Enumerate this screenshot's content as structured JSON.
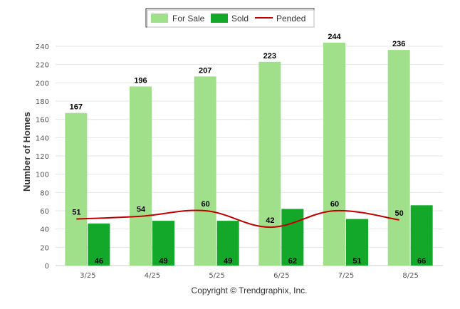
{
  "chart_data": {
    "type": "bar",
    "categories": [
      "3/25",
      "4/25",
      "5/25",
      "6/25",
      "7/25",
      "8/25"
    ],
    "series": [
      {
        "name": "For Sale",
        "type": "bar",
        "color": "#a0e08a",
        "values": [
          167,
          196,
          207,
          223,
          244,
          236
        ]
      },
      {
        "name": "Sold",
        "type": "bar",
        "color": "#13a82a",
        "values": [
          46,
          49,
          49,
          62,
          51,
          66
        ]
      },
      {
        "name": "Pended",
        "type": "line",
        "color": "#c00000",
        "values": [
          51,
          54,
          60,
          42,
          60,
          50
        ]
      }
    ],
    "ylabel": "Number of Homes",
    "xlabel": "",
    "ylim": [
      0,
      240
    ],
    "yticks": [
      0,
      20,
      40,
      60,
      80,
      100,
      120,
      140,
      160,
      180,
      200,
      220,
      240
    ],
    "grid": true,
    "legend": "top-center"
  },
  "footer": {
    "copyright": "Copyright © Trendgraphix, Inc."
  }
}
